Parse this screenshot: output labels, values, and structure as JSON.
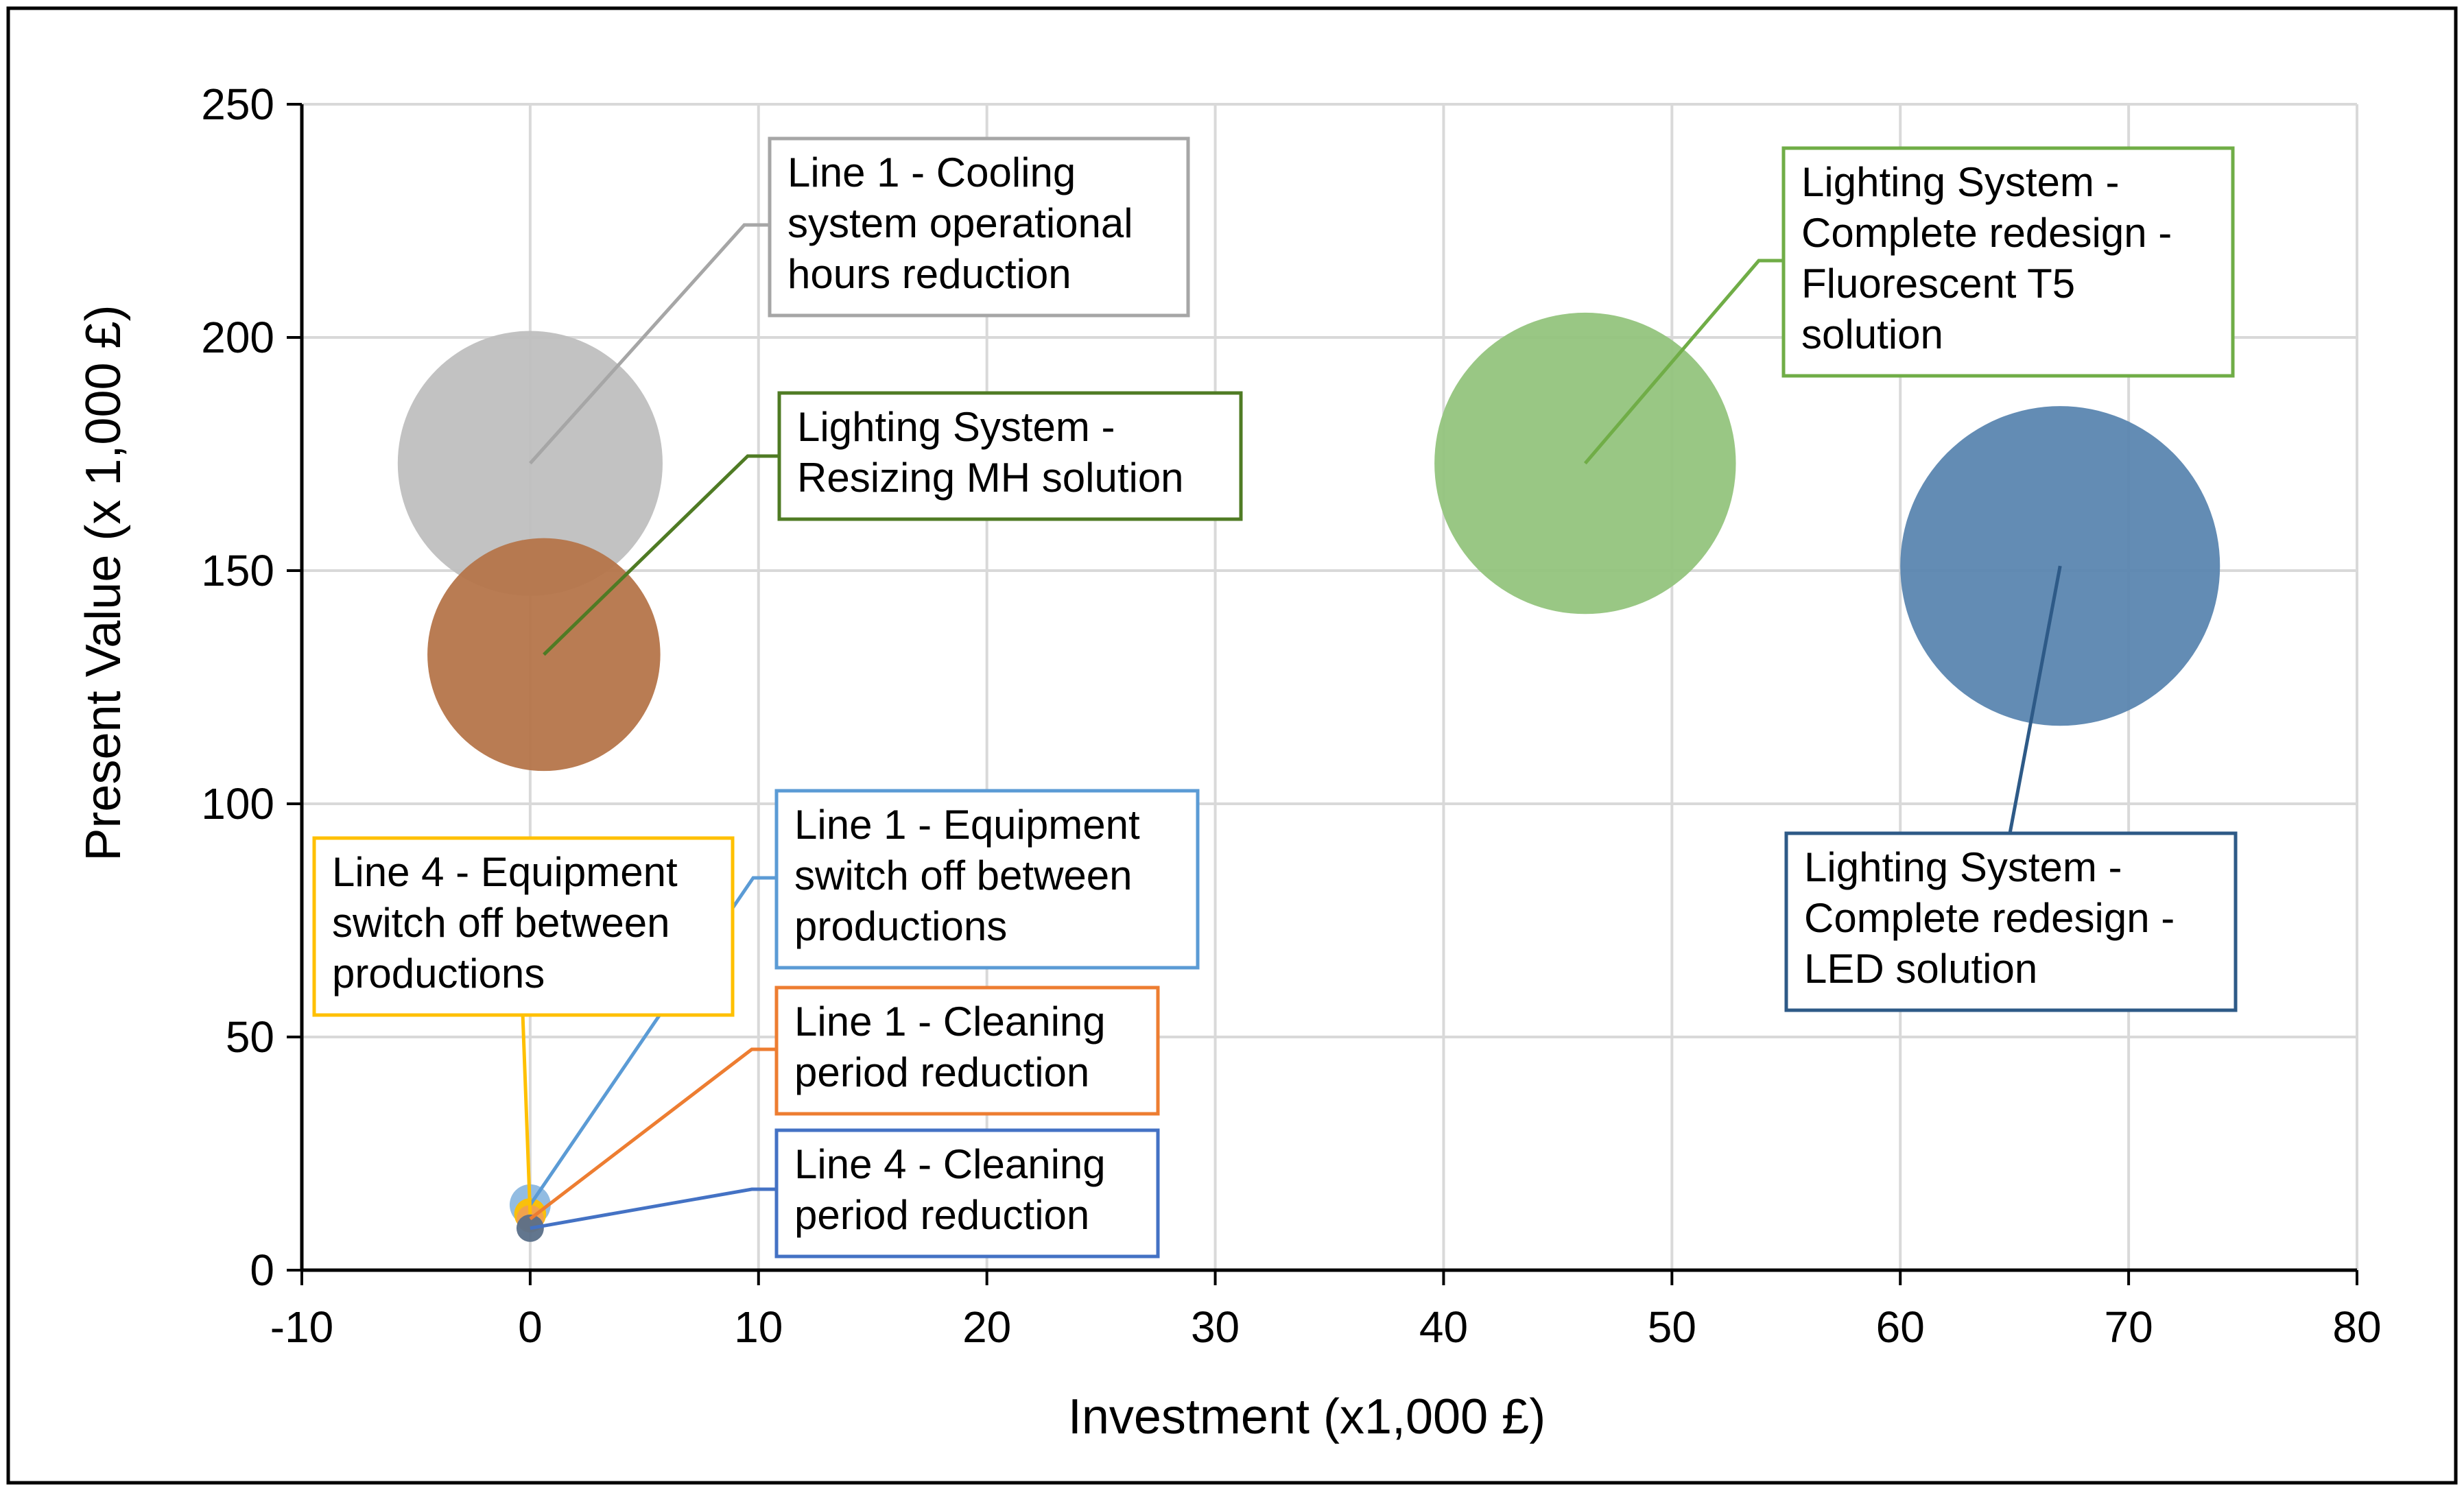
{
  "chart_data": {
    "type": "bubble",
    "xlabel": "Investment (x1,000 £)",
    "ylabel": "Present Value (x 1,000 £)",
    "xlim": [
      -10,
      80
    ],
    "ylim": [
      0,
      250
    ],
    "x_ticks": [
      "-10",
      "0",
      "10",
      "20",
      "30",
      "40",
      "50",
      "60",
      "70",
      "80"
    ],
    "y_ticks": [
      "0",
      "50",
      "100",
      "150",
      "200",
      "250"
    ],
    "grid": true,
    "series": [
      {
        "name": "Line 1 - Cooling system operational hours reduction",
        "label_lines": [
          "Line 1 - Cooling",
          "system operational",
          "hours reduction"
        ],
        "x": 0,
        "y": 173,
        "size": 58,
        "color": "#bfbfbf",
        "border": "#a6a6a6"
      },
      {
        "name": "Lighting System - Resizing MH solution",
        "label_lines": [
          "Lighting System -",
          "Resizing MH solution"
        ],
        "x": 0.6,
        "y": 132,
        "size": 51,
        "color": "#b5754a",
        "border": "#4f7b24"
      },
      {
        "name": "Lighting System - Complete redesign - Fluorescent T5 solution",
        "label_lines": [
          "Lighting System -",
          "Complete redesign -",
          "Fluorescent T5",
          "solution"
        ],
        "x": 46.2,
        "y": 173,
        "size": 66,
        "color": "#93c47d",
        "border": "#70ad47"
      },
      {
        "name": "Lighting System - Complete redesign - LED solution",
        "label_lines": [
          "Lighting System -",
          "Complete redesign -",
          "LED solution"
        ],
        "x": 67,
        "y": 151,
        "size": 70,
        "color": "#5b86b0",
        "border": "#2e5a87"
      },
      {
        "name": "Line 1 - Equipment switch off between productions",
        "label_lines": [
          "Line 1 - Equipment",
          "switch off between",
          "productions"
        ],
        "x": 0,
        "y": 14,
        "size": 9,
        "color": "#8cb8e0",
        "border": "#5b9bd5"
      },
      {
        "name": "Line 4 - Equipment switch off between productions",
        "label_lines": [
          "Line 4 - Equipment",
          "switch off between",
          "productions"
        ],
        "x": 0,
        "y": 12,
        "size": 7,
        "color": "#ffc000",
        "border": "#ffc000"
      },
      {
        "name": "Line 1 - Cleaning period reduction",
        "label_lines": [
          "Line 1 - Cleaning",
          "period reduction"
        ],
        "x": 0,
        "y": 11,
        "size": 6,
        "color": "#f0a050",
        "border": "#ed7d31"
      },
      {
        "name": "Line 4 - Cleaning period reduction",
        "label_lines": [
          "Line 4 - Cleaning",
          "period reduction"
        ],
        "x": 0,
        "y": 9,
        "size": 6,
        "color": "#5a6f88",
        "border": "#4472c4"
      }
    ]
  }
}
